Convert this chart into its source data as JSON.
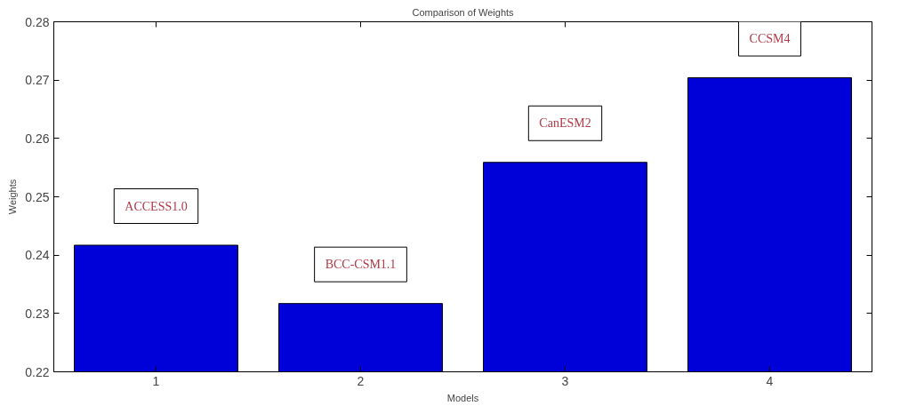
{
  "chart_data": {
    "type": "bar",
    "title": "Comparison of Weights",
    "xlabel": "Models",
    "ylabel": "Weights",
    "x": [
      1,
      2,
      3,
      4
    ],
    "values": [
      0.2417,
      0.2317,
      0.2559,
      0.2704
    ],
    "color": "#0000d8",
    "xlim": [
      0.5,
      4.5
    ],
    "xticks": [
      1,
      2,
      3,
      4
    ],
    "ylim": [
      0.22,
      0.28
    ],
    "yticks": [
      0.22,
      0.23,
      0.24,
      0.25,
      0.26,
      0.27,
      0.28
    ],
    "grid": false,
    "annotations": [
      "ACCESS1.0",
      "BCC-CSM1.1",
      "CanESM2",
      "CCSM4"
    ]
  }
}
